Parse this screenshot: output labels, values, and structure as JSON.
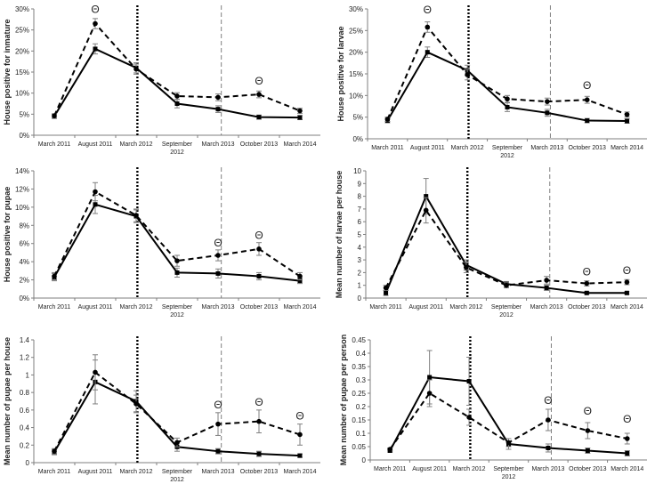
{
  "x_categories": [
    "March 2011",
    "August 2011",
    "March 2012",
    "September 2012",
    "March 2013",
    "October 2013",
    "March 2014"
  ],
  "marker_symbol": "Θ",
  "colors": {
    "line": "#000000",
    "axis": "#7f7f7f",
    "grid_dotted": "#000000",
    "grid_dashed": "#7f7f7f",
    "error": "#7f7f7f"
  },
  "chart_data": [
    {
      "type": "line",
      "ylabel": "House positive for inmature",
      "ylim": [
        0,
        30
      ],
      "ystep": 5,
      "tick_format": "percent",
      "dotted_line_after": "March 2012",
      "dashed_line_at": "March 2013",
      "series": [
        {
          "name": "solid",
          "style": "solid",
          "values": [
            4.5,
            20.5,
            16,
            7.5,
            6.2,
            4.3,
            4.2
          ],
          "errors": [
            0.5,
            1.2,
            1.2,
            1.0,
            0.8,
            0.5,
            0.5
          ]
        },
        {
          "name": "dashed",
          "style": "dashed",
          "values": [
            4.6,
            26.5,
            15.7,
            9.3,
            9.0,
            9.7,
            5.8
          ],
          "errors": [
            0.5,
            1.2,
            1.2,
            0.8,
            0.8,
            0.8,
            0.6
          ]
        }
      ],
      "annotations": [
        {
          "x": "August 2011",
          "y": 29
        },
        {
          "x": "October 2013",
          "y": 12
        }
      ]
    },
    {
      "type": "line",
      "ylabel": "House positive for larvae",
      "ylim": [
        0,
        30
      ],
      "ystep": 5,
      "tick_format": "percent",
      "dotted_line_after": "March 2012",
      "dashed_line_at": "March 2013",
      "series": [
        {
          "name": "solid",
          "style": "solid",
          "values": [
            4.2,
            20,
            15.8,
            7.3,
            6.0,
            4.2,
            4.1
          ],
          "errors": [
            0.5,
            1.2,
            1.2,
            1.0,
            0.8,
            0.5,
            0.5
          ]
        },
        {
          "name": "dashed",
          "style": "dashed",
          "values": [
            4.5,
            25.8,
            14.8,
            9.2,
            8.6,
            9.0,
            5.6
          ],
          "errors": [
            0.5,
            1.2,
            1.2,
            0.8,
            0.8,
            0.8,
            0.6
          ]
        }
      ],
      "annotations": [
        {
          "x": "August 2011",
          "y": 29
        },
        {
          "x": "October 2013",
          "y": 11.5
        }
      ]
    },
    {
      "type": "line",
      "ylabel": "House positive for pupae",
      "ylim": [
        0,
        14
      ],
      "ystep": 2,
      "tick_format": "percent",
      "dotted_line_after": "March 2012",
      "dashed_line_at": "March 2013",
      "series": [
        {
          "name": "solid",
          "style": "solid",
          "values": [
            2.3,
            10.3,
            9.0,
            2.8,
            2.7,
            2.4,
            1.9
          ],
          "errors": [
            0.4,
            1.0,
            0.7,
            0.5,
            0.5,
            0.4,
            0.3
          ]
        },
        {
          "name": "dashed",
          "style": "dashed",
          "values": [
            2.4,
            11.7,
            9.1,
            4.1,
            4.7,
            5.4,
            2.4
          ],
          "errors": [
            0.4,
            1.0,
            0.7,
            0.6,
            0.6,
            0.7,
            0.4
          ]
        }
      ],
      "annotations": [
        {
          "x": "March 2013",
          "y": 5.7
        },
        {
          "x": "October 2013",
          "y": 6.5
        }
      ]
    },
    {
      "type": "line",
      "ylabel": "Mean number of larvae per house",
      "ylim": [
        0,
        10
      ],
      "ystep": 1,
      "tick_format": "integer",
      "dotted_line_after": "March 2012",
      "dashed_line_at": "March 2013",
      "series": [
        {
          "name": "solid",
          "style": "solid",
          "values": [
            0.4,
            8.0,
            2.6,
            1.1,
            0.8,
            0.4,
            0.4
          ],
          "errors": [
            0.2,
            1.4,
            0.4,
            0.2,
            0.2,
            0.1,
            0.1
          ]
        },
        {
          "name": "dashed",
          "style": "dashed",
          "values": [
            0.8,
            6.9,
            2.4,
            1.0,
            1.4,
            1.15,
            1.25
          ],
          "errors": [
            0.2,
            1.0,
            0.4,
            0.2,
            0.3,
            0.2,
            0.2
          ]
        }
      ],
      "annotations": [
        {
          "x": "October 2013",
          "y": 1.8
        },
        {
          "x": "March 2014",
          "y": 1.9
        }
      ]
    },
    {
      "type": "line",
      "ylabel": "Mean number of pupae per house",
      "ylim": [
        0,
        1.4
      ],
      "ystep": 0.2,
      "tick_format": "decimal1",
      "dotted_line_after": "March 2012",
      "dashed_line_at": "March 2013",
      "series": [
        {
          "name": "solid",
          "style": "solid",
          "values": [
            0.12,
            0.92,
            0.7,
            0.18,
            0.13,
            0.1,
            0.08
          ],
          "errors": [
            0.03,
            0.25,
            0.12,
            0.05,
            0.03,
            0.03,
            0.02
          ]
        },
        {
          "name": "dashed",
          "style": "dashed",
          "values": [
            0.13,
            1.03,
            0.67,
            0.23,
            0.44,
            0.47,
            0.32
          ],
          "errors": [
            0.03,
            0.2,
            0.1,
            0.05,
            0.13,
            0.13,
            0.12
          ]
        }
      ],
      "annotations": [
        {
          "x": "March 2013",
          "y": 0.62
        },
        {
          "x": "October 2013",
          "y": 0.65
        },
        {
          "x": "March 2014",
          "y": 0.49
        }
      ]
    },
    {
      "type": "line",
      "ylabel": "Mean number of pupae per person",
      "ylim": [
        0,
        0.45
      ],
      "ystep": 0.05,
      "tick_format": "decimal2",
      "dotted_line_after": "March 2012",
      "dashed_line_at": "March 2013",
      "series": [
        {
          "name": "solid",
          "style": "solid",
          "values": [
            0.035,
            0.31,
            0.295,
            0.06,
            0.045,
            0.035,
            0.025
          ],
          "errors": [
            0.005,
            0.1,
            0.09,
            0.02,
            0.015,
            0.01,
            0.01
          ]
        },
        {
          "name": "dashed",
          "style": "dashed",
          "values": [
            0.04,
            0.25,
            0.16,
            0.065,
            0.15,
            0.11,
            0.08
          ],
          "errors": [
            0.005,
            0.05,
            0.03,
            0.015,
            0.04,
            0.03,
            0.02
          ]
        }
      ],
      "annotations": [
        {
          "x": "March 2013",
          "y": 0.21
        },
        {
          "x": "October 2013",
          "y": 0.17
        },
        {
          "x": "March 2014",
          "y": 0.14
        }
      ]
    }
  ]
}
